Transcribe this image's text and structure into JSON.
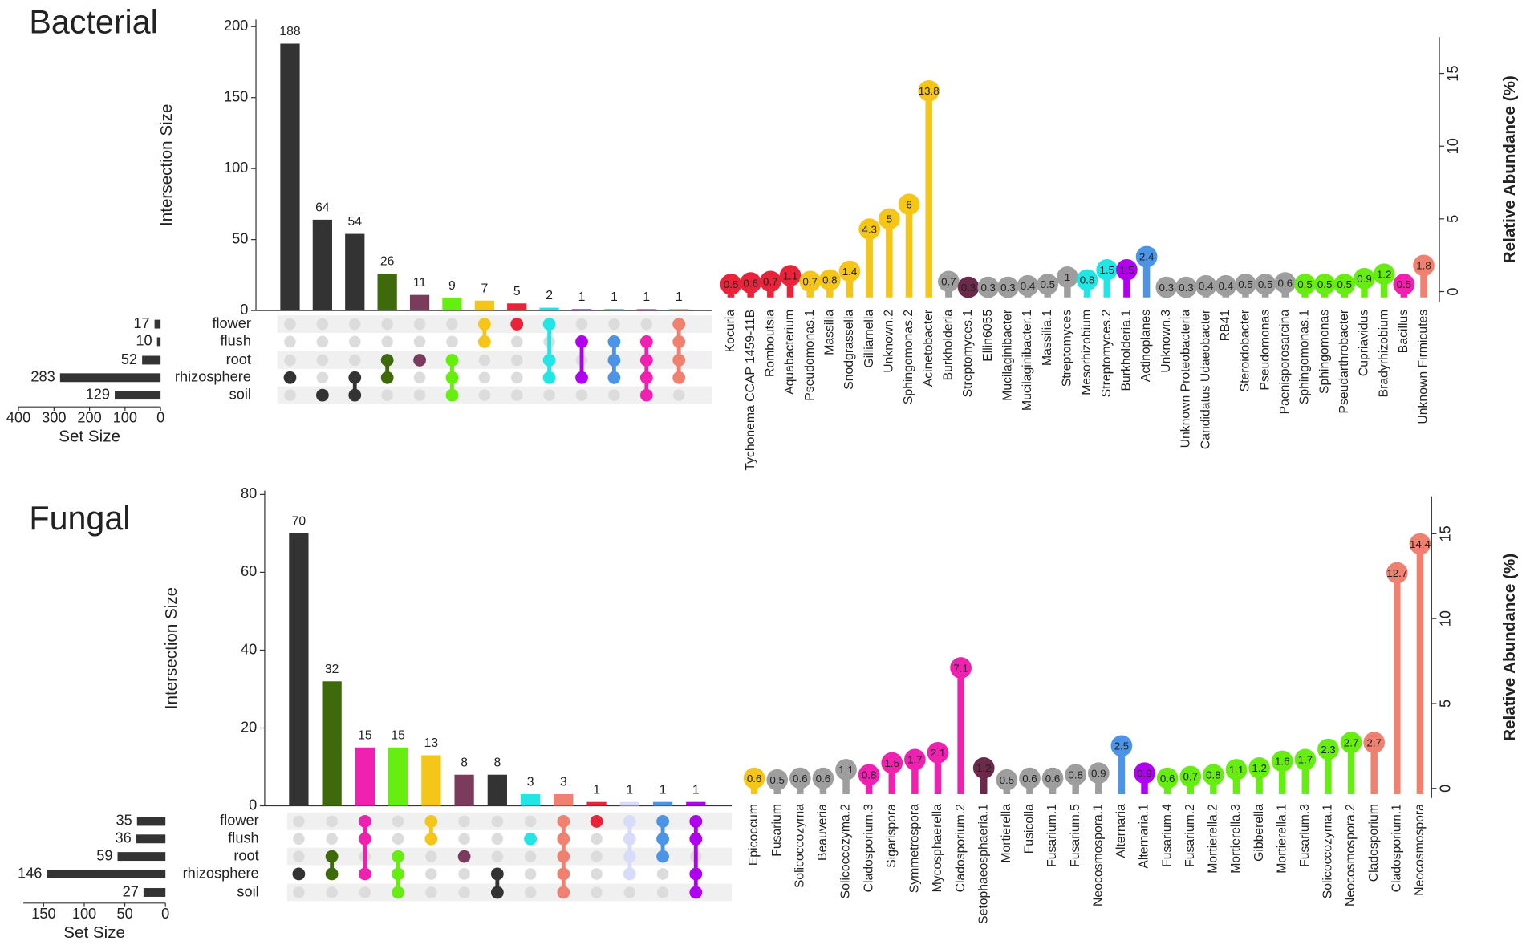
{
  "chart_data": [
    {
      "type": "upset",
      "title": "Bacterial",
      "ylabel": "Intersection Size",
      "values": [
        188,
        64,
        54,
        26,
        11,
        9,
        7,
        5,
        2,
        1,
        1,
        1,
        1
      ],
      "colors": [
        "#333333",
        "#333333",
        "#333333",
        "#3f6a0c",
        "#7a3b5c",
        "#66ee11",
        "#f5c518",
        "#e8233a",
        "#22e5e5",
        "#b000f0",
        "#4b94e6",
        "#f020b0",
        "#f08070"
      ],
      "ylim": [
        0,
        205
      ],
      "yticks": [
        0,
        50,
        100,
        150,
        200
      ],
      "sets": [
        "flower",
        "flush",
        "root",
        "rhizosphere",
        "soil"
      ],
      "set_sizes": [
        17,
        10,
        52,
        283,
        129
      ],
      "set_xlabel": "Set Size",
      "set_xlim": [
        400,
        0
      ],
      "set_xticks": [
        400,
        300,
        200,
        100,
        0
      ],
      "membership": [
        [
          3
        ],
        [
          4
        ],
        [
          3,
          4
        ],
        [
          2,
          3
        ],
        [
          2
        ],
        [
          2,
          3,
          4
        ],
        [
          0,
          1
        ],
        [
          0
        ],
        [
          0,
          2,
          3
        ],
        [
          1,
          3
        ],
        [
          1,
          2,
          3
        ],
        [
          1,
          2,
          3,
          4
        ],
        [
          0,
          1,
          2,
          3
        ]
      ]
    },
    {
      "type": "lollipop",
      "ylabel": "Relative Abundance (%)",
      "categories": [
        "Kocuria",
        "Tychonema CCAP 1459-11B",
        "Romboutsia",
        "Aquabacterium",
        "Pseudomonas.1",
        "Massilia",
        "Snodgrassella",
        "Gilliamella",
        "Unknown.2",
        "Sphingomonas.2",
        "Acinetobacter",
        "Burkholderia",
        "Streptomyces.1",
        "Ellin6055",
        "Mucilaginibacter",
        "Mucilaginibacter.1",
        "Massilia.1",
        "Streptomyces",
        "Mesorhizobium",
        "Streptomyces.2",
        "Burkholderia.1",
        "Actinoplanes",
        "Unknown.3",
        "Unknown Proteobacteria",
        "Candidatus Udaeobacter",
        "RB41",
        "Steroidobacter",
        "Pseudomonas",
        "Paenisporosarcina",
        "Sphingomonas.1",
        "Sphingomonas",
        "Pseudarthrobacter",
        "Cupriavidus",
        "Bradyrhizobium",
        "Bacillus",
        "Unknown Firmicutes"
      ],
      "values": [
        0.5,
        0.6,
        0.7,
        1.1,
        0.7,
        0.8,
        1.4,
        4.3,
        5,
        6,
        13.8,
        0.7,
        0.3,
        0.3,
        0.3,
        0.4,
        0.5,
        1,
        0.8,
        1.5,
        1.5,
        2.4,
        0.3,
        0.3,
        0.4,
        0.4,
        0.5,
        0.5,
        0.6,
        0.5,
        0.5,
        0.5,
        0.9,
        1.2,
        0.5,
        1.8
      ],
      "colors": [
        "#e8233a",
        "#e8233a",
        "#e8233a",
        "#e8233a",
        "#f5c518",
        "#f5c518",
        "#f5c518",
        "#f5c518",
        "#f5c518",
        "#f5c518",
        "#f5c518",
        "#9e9e9e",
        "#6b2a4a",
        "#9e9e9e",
        "#9e9e9e",
        "#9e9e9e",
        "#9e9e9e",
        "#9e9e9e",
        "#22e5e5",
        "#22e5e5",
        "#b000f0",
        "#4b94e6",
        "#9e9e9e",
        "#9e9e9e",
        "#9e9e9e",
        "#9e9e9e",
        "#9e9e9e",
        "#9e9e9e",
        "#9e9e9e",
        "#66ee11",
        "#66ee11",
        "#66ee11",
        "#66ee11",
        "#66ee11",
        "#f020b0",
        "#f08070"
      ],
      "ylim": [
        -0.7,
        17.5
      ],
      "yticks": [
        0,
        5,
        10,
        15
      ]
    },
    {
      "type": "upset",
      "title": "Fungal",
      "ylabel": "Intersection Size",
      "values": [
        70,
        32,
        15,
        15,
        13,
        8,
        8,
        3,
        3,
        1,
        1,
        1,
        1
      ],
      "colors": [
        "#333333",
        "#3f6a0c",
        "#f020b0",
        "#66ee11",
        "#f5c518",
        "#7a3b5c",
        "#333333",
        "#22e5e5",
        "#f08070",
        "#e8233a",
        "#d8dcf8",
        "#4b94e6",
        "#b000f0"
      ],
      "ylim": [
        0,
        81
      ],
      "yticks": [
        0,
        20,
        40,
        60,
        80
      ],
      "sets": [
        "flower",
        "flush",
        "root",
        "rhizosphere",
        "soil"
      ],
      "set_sizes": [
        35,
        36,
        59,
        146,
        27
      ],
      "set_xlabel": "Set Size",
      "set_xlim": [
        175,
        0
      ],
      "set_xticks": [
        150,
        100,
        50,
        0
      ],
      "membership": [
        [
          3
        ],
        [
          2,
          3
        ],
        [
          0,
          1,
          3
        ],
        [
          2,
          3,
          4
        ],
        [
          0,
          1
        ],
        [
          2
        ],
        [
          3,
          4
        ],
        [
          1
        ],
        [
          0,
          1,
          2,
          3,
          4
        ],
        [
          0
        ],
        [
          0,
          1,
          2,
          3
        ],
        [
          0,
          1,
          2
        ],
        [
          0,
          1,
          3,
          4
        ]
      ]
    },
    {
      "type": "lollipop",
      "ylabel": "Relative Abundance (%)",
      "categories": [
        "Epicoccum",
        "Fusarium",
        "Solicoccozyma",
        "Beauveria",
        "Solicoccozyma.2",
        "Cladosporium.3",
        "Sigarispora",
        "Symmetrospora",
        "Mycosphaerella",
        "Cladosporium.2",
        "Setophaeosphaeria.1",
        "Mortierella",
        "Fusicolla",
        "Fusarium.1",
        "Fusarium.5",
        "Neocosmospora.1",
        "Alternaria",
        "Alternaria.1",
        "Fusarium.4",
        "Fusarium.2",
        "Mortierella.2",
        "Mortierella.3",
        "Gibberella",
        "Mortierella.1",
        "Fusarium.3",
        "Solicoccozyma.1",
        "Neocosmospora.2",
        "Cladosporium",
        "Cladosporium.1",
        "Neocosmospora"
      ],
      "values": [
        0.6,
        0.5,
        0.6,
        0.6,
        1.1,
        0.8,
        1.5,
        1.7,
        2.1,
        7.1,
        1.2,
        0.5,
        0.6,
        0.6,
        0.8,
        0.9,
        2.5,
        0.9,
        0.6,
        0.7,
        0.8,
        1.1,
        1.2,
        1.6,
        1.7,
        2.3,
        2.7,
        2.7,
        12.7,
        14.4
      ],
      "colors": [
        "#f5c518",
        "#9e9e9e",
        "#9e9e9e",
        "#9e9e9e",
        "#9e9e9e",
        "#f020b0",
        "#f020b0",
        "#f020b0",
        "#f020b0",
        "#f020b0",
        "#6b2a4a",
        "#9e9e9e",
        "#9e9e9e",
        "#9e9e9e",
        "#9e9e9e",
        "#9e9e9e",
        "#4b94e6",
        "#b000f0",
        "#66ee11",
        "#66ee11",
        "#66ee11",
        "#66ee11",
        "#66ee11",
        "#66ee11",
        "#66ee11",
        "#66ee11",
        "#66ee11",
        "#f08070",
        "#f08070",
        "#f08070"
      ],
      "ylim": [
        -0.57,
        17.2
      ],
      "yticks": [
        0,
        5,
        10,
        15
      ]
    }
  ]
}
